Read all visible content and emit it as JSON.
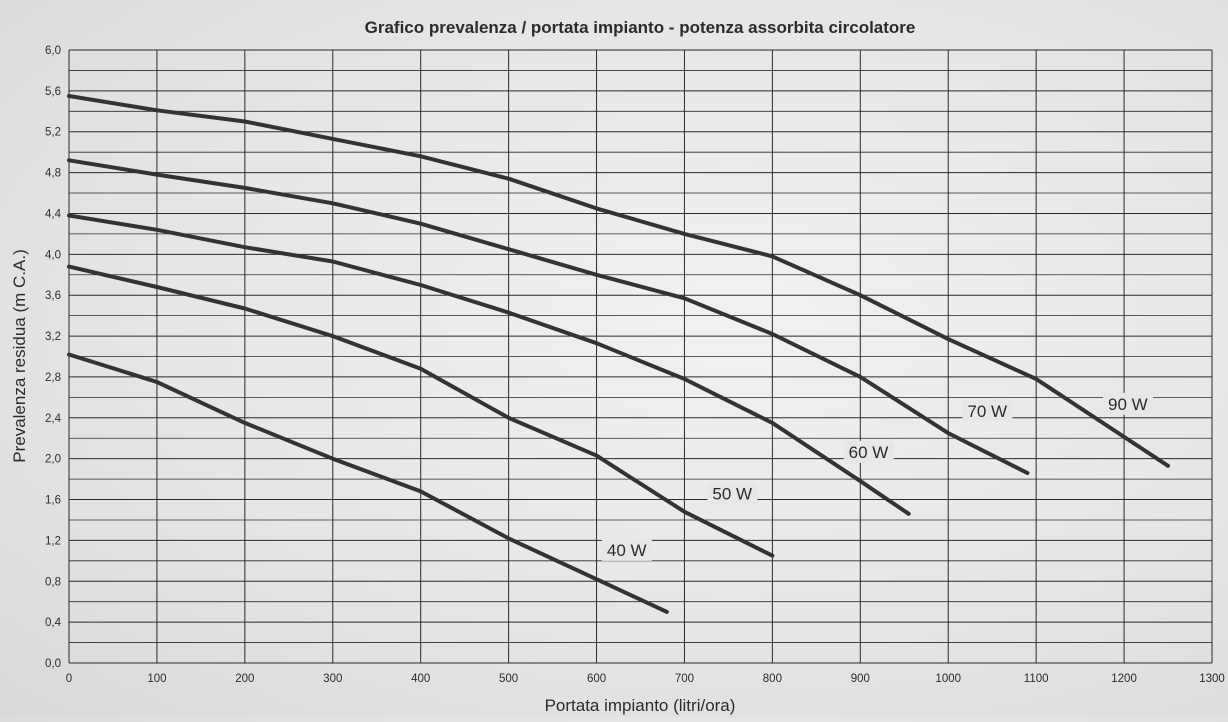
{
  "chart_data": {
    "type": "line",
    "title": "Grafico prevalenza / portata impianto - potenza assorbita circolatore",
    "xlabel": "Portata impianto (litri/ora)",
    "ylabel": "Prevalenza residua (m C.A.)",
    "xlim": [
      0,
      1300
    ],
    "ylim": [
      0,
      6.0
    ],
    "x_ticks": [
      "0",
      "100",
      "200",
      "300",
      "400",
      "500",
      "600",
      "700",
      "800",
      "900",
      "1000",
      "1100",
      "1200",
      "1300"
    ],
    "y_ticks": [
      "0,0",
      "0,4",
      "0,8",
      "1,2",
      "1,6",
      "2,0",
      "2,4",
      "2,8",
      "3,2",
      "3,6",
      "4,0",
      "4,4",
      "4,8",
      "5,2",
      "5,6",
      "6,0"
    ],
    "grid": true,
    "series": [
      {
        "name": "40 W",
        "points": [
          [
            0,
            3.02
          ],
          [
            100,
            2.75
          ],
          [
            200,
            2.35
          ],
          [
            300,
            2.0
          ],
          [
            400,
            1.68
          ],
          [
            500,
            1.22
          ],
          [
            600,
            0.82
          ],
          [
            680,
            0.5
          ]
        ]
      },
      {
        "name": "50 W",
        "points": [
          [
            0,
            3.88
          ],
          [
            100,
            3.68
          ],
          [
            200,
            3.47
          ],
          [
            300,
            3.2
          ],
          [
            400,
            2.88
          ],
          [
            500,
            2.4
          ],
          [
            600,
            2.03
          ],
          [
            700,
            1.48
          ],
          [
            800,
            1.05
          ]
        ]
      },
      {
        "name": "60 W",
        "points": [
          [
            0,
            4.38
          ],
          [
            100,
            4.24
          ],
          [
            200,
            4.07
          ],
          [
            300,
            3.93
          ],
          [
            400,
            3.7
          ],
          [
            500,
            3.43
          ],
          [
            600,
            3.13
          ],
          [
            700,
            2.78
          ],
          [
            800,
            2.35
          ],
          [
            900,
            1.78
          ],
          [
            955,
            1.46
          ]
        ]
      },
      {
        "name": "70 W",
        "points": [
          [
            0,
            4.92
          ],
          [
            100,
            4.78
          ],
          [
            200,
            4.65
          ],
          [
            300,
            4.5
          ],
          [
            400,
            4.3
          ],
          [
            500,
            4.05
          ],
          [
            600,
            3.8
          ],
          [
            700,
            3.57
          ],
          [
            800,
            3.22
          ],
          [
            900,
            2.8
          ],
          [
            1000,
            2.25
          ],
          [
            1090,
            1.86
          ]
        ]
      },
      {
        "name": "90 W",
        "points": [
          [
            0,
            5.55
          ],
          [
            100,
            5.41
          ],
          [
            200,
            5.3
          ],
          [
            300,
            5.13
          ],
          [
            400,
            4.96
          ],
          [
            500,
            4.74
          ],
          [
            600,
            4.45
          ],
          [
            700,
            4.2
          ],
          [
            800,
            3.98
          ],
          [
            900,
            3.6
          ],
          [
            1000,
            3.17
          ],
          [
            1100,
            2.78
          ],
          [
            1250,
            1.93
          ]
        ]
      }
    ]
  }
}
